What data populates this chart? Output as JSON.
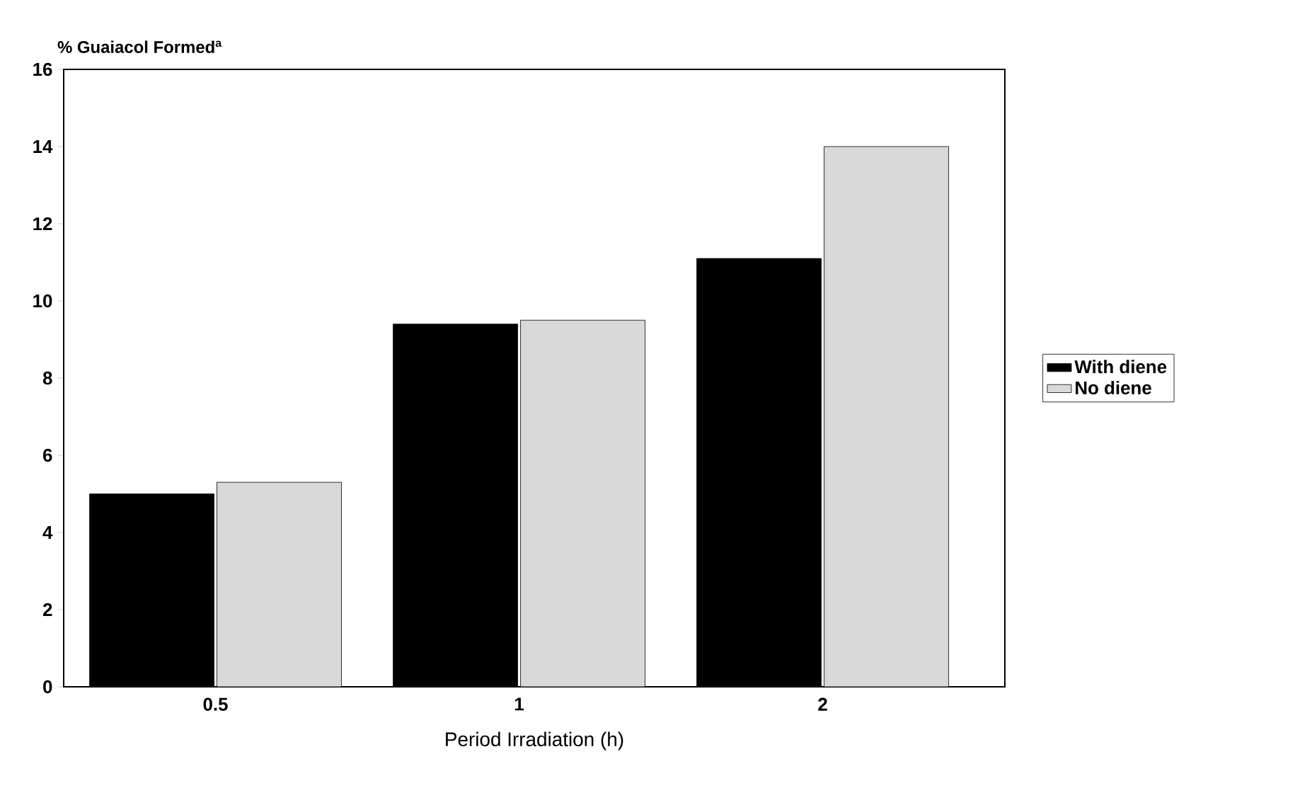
{
  "chart_data": {
    "type": "bar",
    "ylabel": "% Guaiacol Formed$^{a}$",
    "xlabel": "Period Irradiation (h)",
    "categories": [
      "0.5",
      "1",
      "2"
    ],
    "series": [
      {
        "name": "With diene",
        "color": "#000000",
        "values": [
          5.0,
          9.4,
          11.1
        ]
      },
      {
        "name": "No diene",
        "color": "#d9d9d9",
        "values": [
          5.3,
          9.5,
          14.0
        ]
      }
    ],
    "ylim": [
      0,
      16
    ],
    "yticks": [
      0,
      2,
      4,
      6,
      8,
      10,
      12,
      14,
      16
    ],
    "legend": "right"
  }
}
